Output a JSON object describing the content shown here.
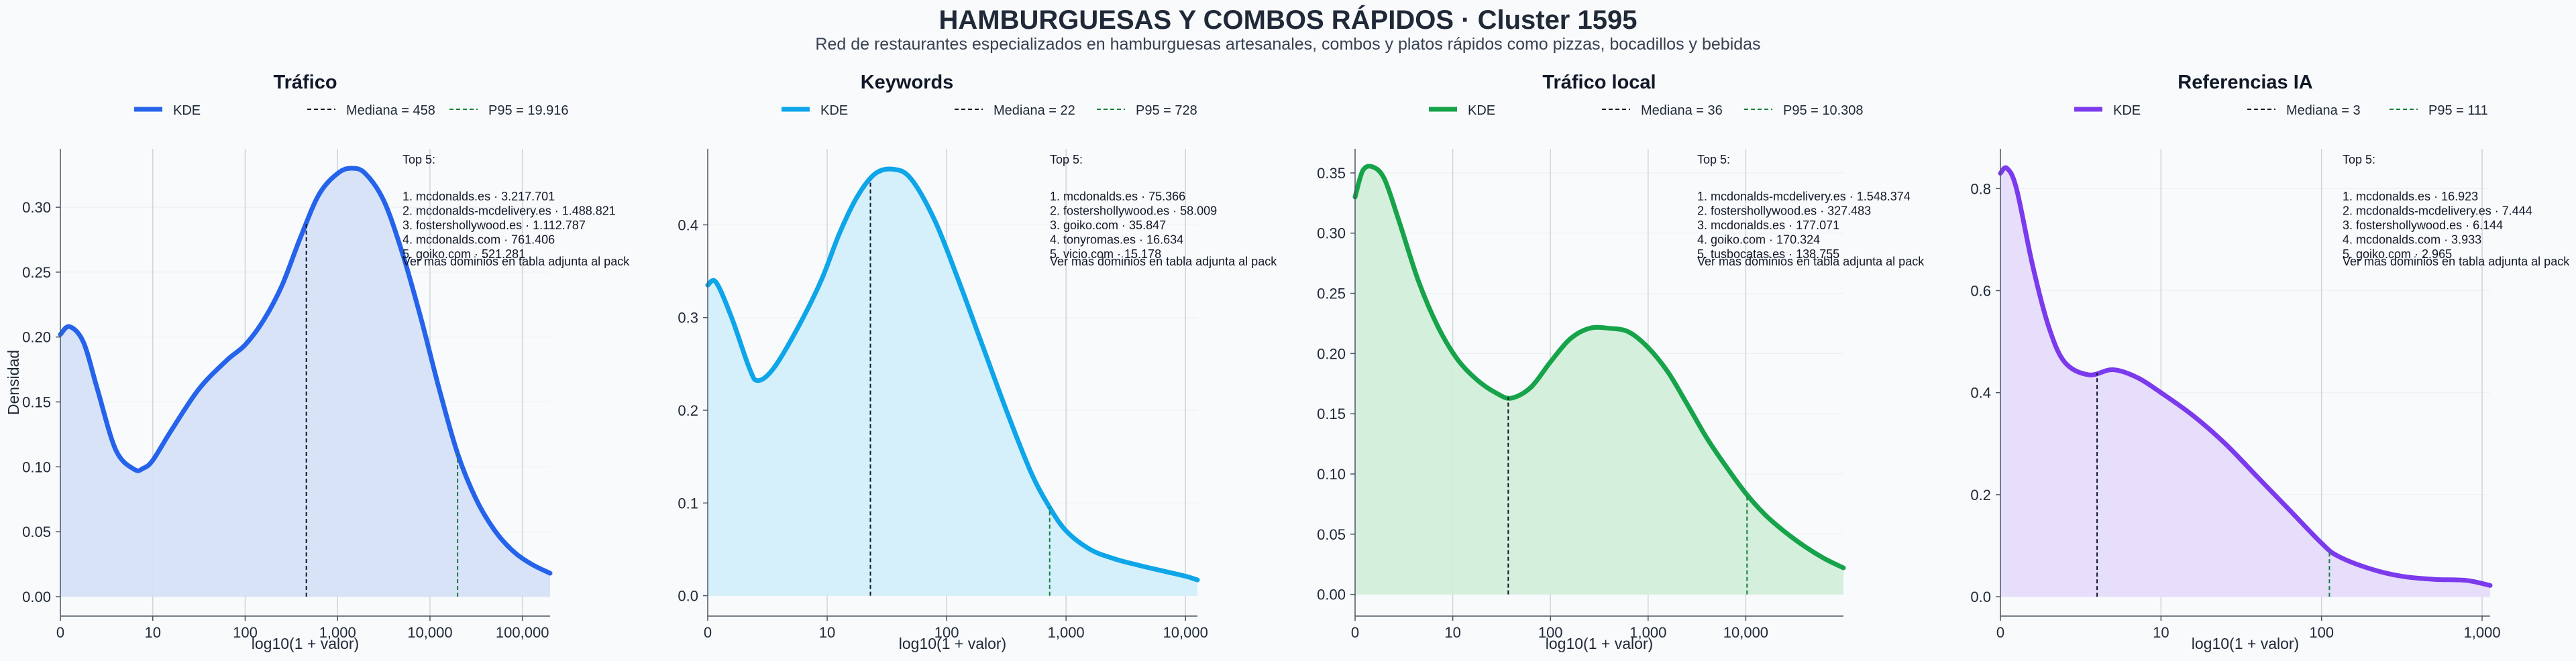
{
  "title": "HAMBURGUESAS Y COMBOS RÁPIDOS · Cluster 1595",
  "subtitle": "Red de restaurantes especializados en hamburguesas artesanales, combos y platos rápidos como pizzas, bocadillos y bebidas",
  "chart_data": [
    {
      "type": "area",
      "title": "Tráfico",
      "xlabel": "log10(1 + valor)",
      "ylabel": "Densidad",
      "color": "#2563eb",
      "fill": "#d6e2f8",
      "xlim": [
        0,
        5.3
      ],
      "ylim": [
        -0.015,
        0.345
      ],
      "x_ticks": [
        {
          "v": 0,
          "label": "0"
        },
        {
          "v": 1,
          "label": "10"
        },
        {
          "v": 2,
          "label": "100"
        },
        {
          "v": 3,
          "label": "1,000"
        },
        {
          "v": 4,
          "label": "10,000"
        },
        {
          "v": 5,
          "label": "100,000"
        }
      ],
      "y_ticks": [
        {
          "v": 0,
          "label": "0.00"
        },
        {
          "v": 0.05,
          "label": "0.05"
        },
        {
          "v": 0.1,
          "label": "0.10"
        },
        {
          "v": 0.15,
          "label": "0.15"
        },
        {
          "v": 0.2,
          "label": "0.20"
        },
        {
          "v": 0.25,
          "label": "0.25"
        },
        {
          "v": 0.3,
          "label": "0.30"
        }
      ],
      "legend": [
        {
          "label": "KDE",
          "style": "solid",
          "color": "#2563eb"
        },
        {
          "label": "Mediana = 458",
          "style": "dashed",
          "color": "#111827"
        },
        {
          "label": "P95 = 19.916",
          "style": "dashed",
          "color": "#15803d"
        }
      ],
      "median_x": 2.662,
      "p95_x": 4.299,
      "kde": {
        "x": [
          0,
          0.1,
          0.25,
          0.4,
          0.6,
          0.8,
          0.9,
          1.0,
          1.2,
          1.5,
          1.8,
          2.0,
          2.2,
          2.4,
          2.6,
          2.8,
          3.0,
          3.15,
          3.3,
          3.5,
          3.7,
          3.9,
          4.1,
          4.3,
          4.5,
          4.7,
          4.9,
          5.1,
          5.3
        ],
        "y": [
          0.202,
          0.208,
          0.196,
          0.16,
          0.113,
          0.098,
          0.099,
          0.105,
          0.128,
          0.16,
          0.182,
          0.194,
          0.213,
          0.24,
          0.277,
          0.31,
          0.326,
          0.33,
          0.326,
          0.305,
          0.265,
          0.215,
          0.16,
          0.11,
          0.075,
          0.051,
          0.035,
          0.025,
          0.018
        ]
      },
      "top5_title": "Top 5:",
      "top5": [
        "1. mcdonalds.es · 3.217.701",
        "2. mcdonalds-mcdelivery.es · 1.488.821",
        "3. fostershollywood.es · 1.112.787",
        "4. mcdonalds.com · 761.406",
        "5. goiko.com · 521.281"
      ],
      "note": "Ver mas dominios en tabla adjunta al pack"
    },
    {
      "type": "area",
      "title": "Keywords",
      "xlabel": "log10(1 + valor)",
      "ylabel": "",
      "color": "#0ea5e9",
      "fill": "#d3effb",
      "xlim": [
        0,
        4.1
      ],
      "ylim": [
        -0.022,
        0.482
      ],
      "x_ticks": [
        {
          "v": 0,
          "label": "0"
        },
        {
          "v": 1,
          "label": "10"
        },
        {
          "v": 2,
          "label": "100"
        },
        {
          "v": 3,
          "label": "1,000"
        },
        {
          "v": 4,
          "label": "10,000"
        }
      ],
      "y_ticks": [
        {
          "v": 0,
          "label": "0.0"
        },
        {
          "v": 0.1,
          "label": "0.1"
        },
        {
          "v": 0.2,
          "label": "0.2"
        },
        {
          "v": 0.3,
          "label": "0.3"
        },
        {
          "v": 0.4,
          "label": "0.4"
        }
      ],
      "legend": [
        {
          "label": "KDE",
          "style": "solid",
          "color": "#0ea5e9"
        },
        {
          "label": "Mediana = 22",
          "style": "dashed",
          "color": "#111827"
        },
        {
          "label": "P95 = 728",
          "style": "dashed",
          "color": "#15803d"
        }
      ],
      "median_x": 1.362,
      "p95_x": 2.863,
      "kde": {
        "x": [
          0,
          0.07,
          0.2,
          0.35,
          0.42,
          0.55,
          0.75,
          0.95,
          1.1,
          1.25,
          1.4,
          1.55,
          1.7,
          1.9,
          2.1,
          2.3,
          2.5,
          2.7,
          2.85,
          3.0,
          3.2,
          3.4,
          3.6,
          3.8,
          4.0,
          4.1
        ],
        "y": [
          0.335,
          0.338,
          0.3,
          0.245,
          0.232,
          0.245,
          0.288,
          0.34,
          0.39,
          0.43,
          0.455,
          0.46,
          0.45,
          0.405,
          0.34,
          0.27,
          0.2,
          0.135,
          0.098,
          0.07,
          0.05,
          0.04,
          0.033,
          0.027,
          0.021,
          0.017
        ]
      },
      "top5_title": "Top 5:",
      "top5": [
        "1. mcdonalds.es · 75.366",
        "2. fostershollywood.es · 58.009",
        "3. goiko.com · 35.847",
        "4. tonyromas.es · 16.634",
        "5. vicio.com · 15.178"
      ],
      "note": "Ver mas dominios en tabla adjunta al pack"
    },
    {
      "type": "area",
      "title": "Tráfico local",
      "xlabel": "log10(1 + valor)",
      "ylabel": "",
      "color": "#16a34a",
      "fill": "#d3eedb",
      "xlim": [
        0,
        5.0
      ],
      "ylim": [
        -0.018,
        0.37
      ],
      "x_ticks": [
        {
          "v": 0,
          "label": "0"
        },
        {
          "v": 1,
          "label": "10"
        },
        {
          "v": 2,
          "label": "100"
        },
        {
          "v": 3,
          "label": "1,000"
        },
        {
          "v": 4,
          "label": "10,000"
        }
      ],
      "y_ticks": [
        {
          "v": 0,
          "label": "0.00"
        },
        {
          "v": 0.05,
          "label": "0.05"
        },
        {
          "v": 0.1,
          "label": "0.10"
        },
        {
          "v": 0.15,
          "label": "0.15"
        },
        {
          "v": 0.2,
          "label": "0.20"
        },
        {
          "v": 0.25,
          "label": "0.25"
        },
        {
          "v": 0.3,
          "label": "0.30"
        },
        {
          "v": 0.35,
          "label": "0.35"
        }
      ],
      "legend": [
        {
          "label": "KDE",
          "style": "solid",
          "color": "#16a34a"
        },
        {
          "label": "Mediana = 36",
          "style": "dashed",
          "color": "#111827"
        },
        {
          "label": "P95 = 10.308",
          "style": "dashed",
          "color": "#15803d"
        }
      ],
      "median_x": 1.568,
      "p95_x": 4.013,
      "kde": {
        "x": [
          0,
          0.08,
          0.18,
          0.3,
          0.45,
          0.65,
          0.85,
          1.05,
          1.25,
          1.45,
          1.6,
          1.8,
          2.0,
          2.2,
          2.4,
          2.6,
          2.8,
          3.0,
          3.2,
          3.4,
          3.6,
          3.8,
          4.0,
          4.2,
          4.4,
          4.6,
          4.8,
          5.0
        ],
        "y": [
          0.33,
          0.352,
          0.355,
          0.345,
          0.31,
          0.26,
          0.222,
          0.195,
          0.178,
          0.167,
          0.163,
          0.172,
          0.193,
          0.212,
          0.221,
          0.221,
          0.218,
          0.205,
          0.185,
          0.158,
          0.13,
          0.106,
          0.084,
          0.066,
          0.052,
          0.04,
          0.03,
          0.022
        ]
      },
      "top5_title": "Top 5:",
      "top5": [
        "1. mcdonalds-mcdelivery.es · 1.548.374",
        "2. fostershollywood.es · 327.483",
        "3. mcdonalds.es · 177.071",
        "4. goiko.com · 170.324",
        "5. tusbocatas.es · 138.755"
      ],
      "note": "Ver mas dominios en tabla adjunta al pack"
    },
    {
      "type": "area",
      "title": "Referencias IA",
      "xlabel": "log10(1 + valor)",
      "ylabel": "",
      "color": "#7c3aed",
      "fill": "#e5dcfa",
      "xlim": [
        0,
        3.05
      ],
      "ylim": [
        -0.038,
        0.878
      ],
      "x_ticks": [
        {
          "v": 0,
          "label": "0"
        },
        {
          "v": 1,
          "label": "10"
        },
        {
          "v": 2,
          "label": "100"
        },
        {
          "v": 3,
          "label": "1,000"
        }
      ],
      "y_ticks": [
        {
          "v": 0,
          "label": "0.0"
        },
        {
          "v": 0.2,
          "label": "0.2"
        },
        {
          "v": 0.4,
          "label": "0.4"
        },
        {
          "v": 0.6,
          "label": "0.6"
        },
        {
          "v": 0.8,
          "label": "0.8"
        }
      ],
      "legend": [
        {
          "label": "KDE",
          "style": "solid",
          "color": "#7c3aed"
        },
        {
          "label": "Mediana = 3",
          "style": "dashed",
          "color": "#111827"
        },
        {
          "label": "P95 = 111",
          "style": "dashed",
          "color": "#15803d"
        }
      ],
      "median_x": 0.602,
      "p95_x": 2.049,
      "kde": {
        "x": [
          0,
          0.04,
          0.1,
          0.2,
          0.3,
          0.4,
          0.55,
          0.7,
          0.85,
          1.0,
          1.2,
          1.4,
          1.6,
          1.8,
          2.0,
          2.1,
          2.3,
          2.5,
          2.7,
          2.9,
          3.05
        ],
        "y": [
          0.83,
          0.84,
          0.8,
          0.65,
          0.53,
          0.46,
          0.435,
          0.445,
          0.43,
          0.4,
          0.355,
          0.3,
          0.235,
          0.17,
          0.105,
          0.08,
          0.055,
          0.04,
          0.034,
          0.032,
          0.022
        ]
      },
      "top5_title": "Top 5:",
      "top5": [
        "1. mcdonalds.es · 16.923",
        "2. mcdonalds-mcdelivery.es · 7.444",
        "3. fostershollywood.es · 6.144",
        "4. mcdonalds.com · 3.933",
        "5. goiko.com · 2.965"
      ],
      "note": "Ver mas dominios en tabla adjunta al pack"
    }
  ]
}
